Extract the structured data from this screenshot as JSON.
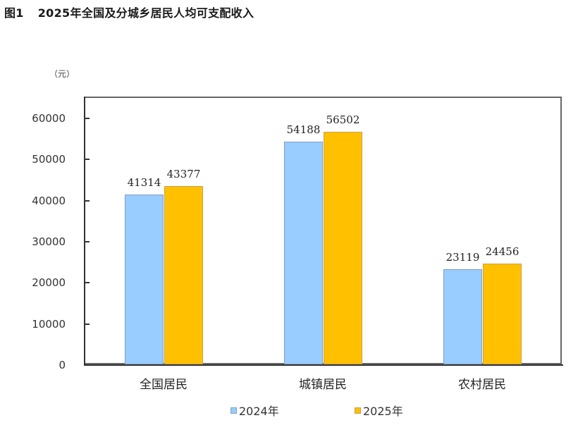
{
  "title": {
    "figure_label": "图1",
    "text": "2025年全国及分城乡居民人均可支配收入"
  },
  "colors": {
    "series_2024": "#99ccff",
    "series_2025": "#ffc000",
    "axis": "#333333"
  },
  "chart_data": {
    "type": "bar",
    "title": "2025年全国及分城乡居民人均可支配收入",
    "xlabel": "",
    "ylabel": "（元）",
    "ylim": [
      0,
      60000
    ],
    "yticks": [
      0,
      10000,
      20000,
      30000,
      40000,
      50000,
      60000
    ],
    "ytick_labels": [
      "0",
      "10000",
      "20000",
      "30000",
      "40000",
      "50000",
      "60000"
    ],
    "grid": false,
    "legend_position": "bottom",
    "categories": [
      "全国居民",
      "城镇居民",
      "农村居民"
    ],
    "series": [
      {
        "name": "2024年",
        "color": "#99ccff",
        "values": [
          41314,
          54188,
          23119
        ]
      },
      {
        "name": "2025年",
        "color": "#ffc000",
        "values": [
          43377,
          56502,
          24456
        ]
      }
    ],
    "data_labels": [
      [
        "41314",
        "54188",
        "23119"
      ],
      [
        "43377",
        "56502",
        "24456"
      ]
    ]
  }
}
